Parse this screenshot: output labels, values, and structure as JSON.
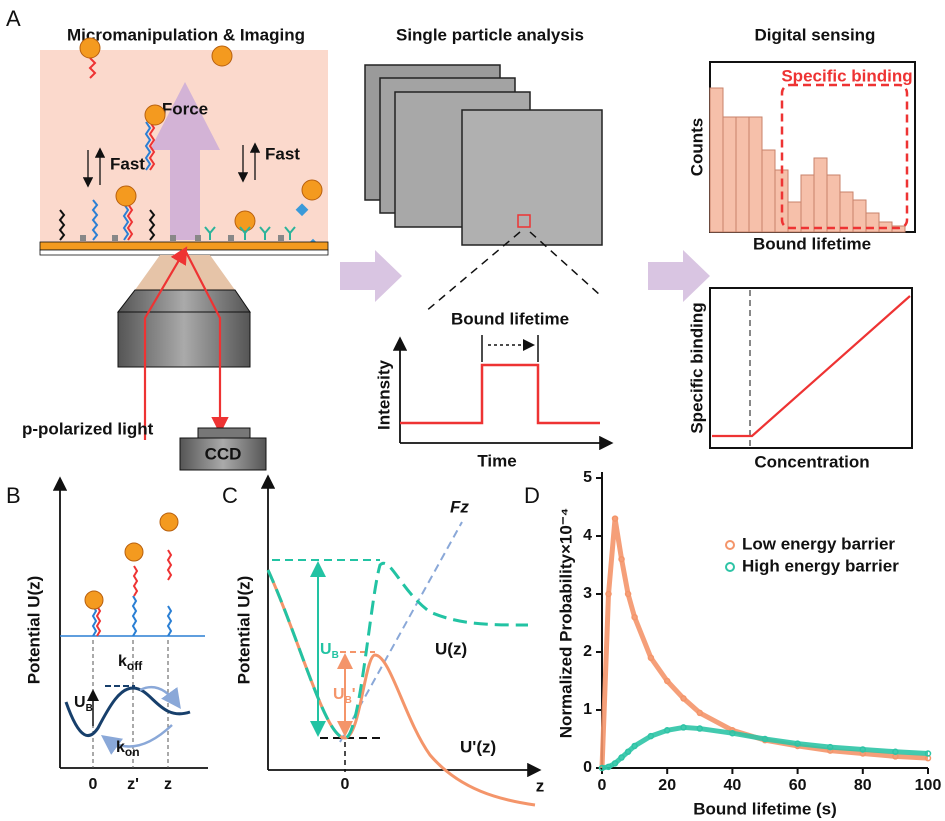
{
  "figure": {
    "panel_a": {
      "letter": "A",
      "title_left": "Micromanipulation & Imaging",
      "title_mid": "Single particle analysis",
      "title_right": "Digital sensing",
      "force": "Force",
      "fast_left": "Fast",
      "fast_right": "Fast",
      "light": "p-polarized light",
      "ccd": "CCD",
      "trace_label": "Bound lifetime",
      "trace_y": "Intensity",
      "trace_x": "Time",
      "hist_box": "Specific binding",
      "hist_y": "Counts",
      "hist_x": "Bound lifetime",
      "line_y": "Specific binding",
      "line_x": "Concentration"
    },
    "panel_b": {
      "letter": "B",
      "y_label": "Potential U(z)",
      "k_off": {
        "main": "k",
        "sub": "off"
      },
      "k_on": {
        "main": "k",
        "sub": "on"
      },
      "barrier": {
        "main": "U",
        "sub": "B"
      },
      "x_ticks": [
        "0",
        "z'",
        "z"
      ]
    },
    "panel_c": {
      "letter": "C",
      "y_label": "Potential U(z)",
      "fz": "Fz",
      "u": "U(z)",
      "u_prime": "U'(z)",
      "barrier": {
        "main": "U",
        "sub": "B"
      },
      "barrier_prime": {
        "main": "U",
        "sub": "B",
        "sup": "'"
      },
      "x_tick": "0",
      "x_label": "z"
    },
    "panel_d": {
      "letter": "D"
    }
  },
  "chart_data": {
    "type": "line",
    "x_label": "Bound lifetime (s)",
    "y_label": "Normalized Probability×10⁻⁴",
    "x": [
      0,
      2,
      4,
      6,
      8,
      10,
      15,
      20,
      25,
      30,
      40,
      50,
      60,
      70,
      80,
      90,
      100
    ],
    "series": [
      {
        "name": "Low energy barrier",
        "color": "#f4956a",
        "values": [
          0,
          3.0,
          4.3,
          3.6,
          3.0,
          2.6,
          1.9,
          1.5,
          1.2,
          0.95,
          0.65,
          0.48,
          0.38,
          0.3,
          0.25,
          0.2,
          0.17
        ]
      },
      {
        "name": "High energy barrier",
        "color": "#2ec4a6",
        "values": [
          0,
          0.02,
          0.08,
          0.18,
          0.28,
          0.38,
          0.55,
          0.65,
          0.7,
          0.68,
          0.6,
          0.5,
          0.42,
          0.36,
          0.32,
          0.28,
          0.25
        ]
      }
    ],
    "xlim": [
      0,
      100
    ],
    "xticks": [
      0,
      20,
      40,
      60,
      80,
      100
    ],
    "ylim": [
      0,
      5
    ],
    "yticks": [
      0,
      1,
      2,
      3,
      4,
      5
    ]
  }
}
